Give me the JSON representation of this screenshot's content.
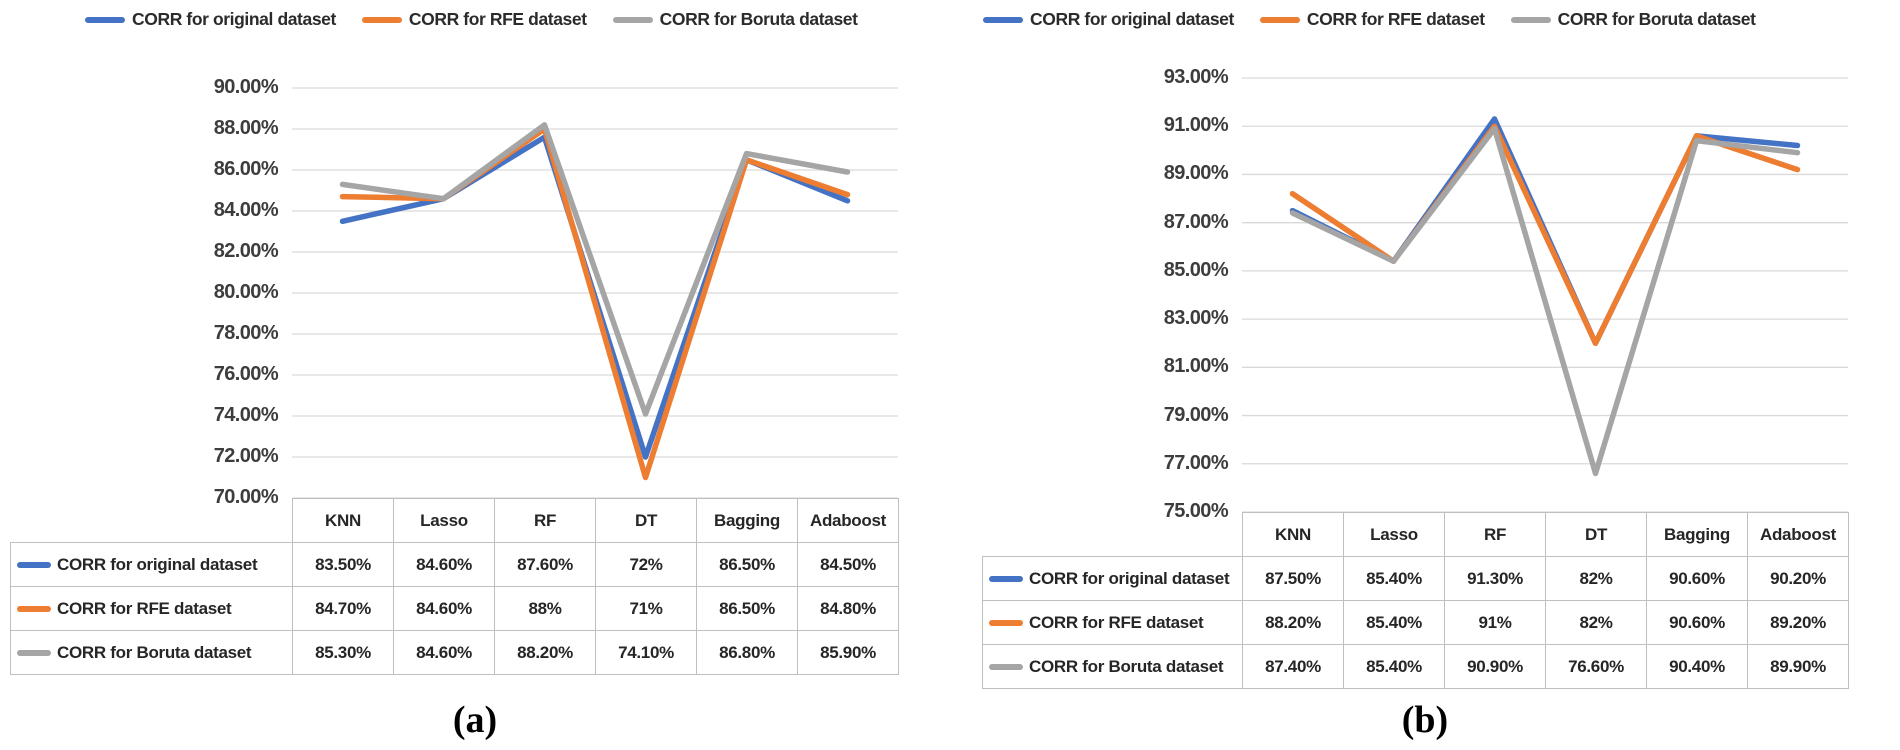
{
  "chart_data": [
    {
      "id": "a",
      "caption": "(a)",
      "type": "line",
      "categories": [
        "KNN",
        "Lasso",
        "RF",
        "DT",
        "Bagging",
        "Adaboost"
      ],
      "series": [
        {
          "name": "CORR for original dataset",
          "color": "#4472C4",
          "values": [
            83.5,
            84.6,
            87.6,
            72,
            86.5,
            84.5
          ],
          "display": [
            "83.50%",
            "84.60%",
            "87.60%",
            "72%",
            "86.50%",
            "84.50%"
          ]
        },
        {
          "name": "CORR for RFE dataset",
          "color": "#ED7D31",
          "values": [
            84.7,
            84.6,
            88,
            71,
            86.5,
            84.8
          ],
          "display": [
            "84.70%",
            "84.60%",
            "88%",
            "71%",
            "86.50%",
            "84.80%"
          ]
        },
        {
          "name": "CORR for Boruta dataset",
          "color": "#A5A5A5",
          "values": [
            85.3,
            84.6,
            88.2,
            74.1,
            86.8,
            85.9
          ],
          "display": [
            "85.30%",
            "84.60%",
            "88.20%",
            "74.10%",
            "86.80%",
            "85.90%"
          ]
        }
      ],
      "ylim": [
        70,
        90
      ],
      "ytick_step": 2,
      "ytick_labels": [
        "90.00%",
        "88.00%",
        "86.00%",
        "84.00%",
        "82.00%",
        "80.00%",
        "78.00%",
        "76.00%",
        "74.00%",
        "72.00%",
        "70.00%"
      ],
      "grid": true,
      "gridline_color": "#D9D9D9",
      "legend_position": "top",
      "xlabel": "",
      "ylabel": ""
    },
    {
      "id": "b",
      "caption": "(b)",
      "type": "line",
      "categories": [
        "KNN",
        "Lasso",
        "RF",
        "DT",
        "Bagging",
        "Adaboost"
      ],
      "series": [
        {
          "name": "CORR for original dataset",
          "color": "#4472C4",
          "values": [
            87.5,
            85.4,
            91.3,
            82,
            90.6,
            90.2
          ],
          "display": [
            "87.50%",
            "85.40%",
            "91.30%",
            "82%",
            "90.60%",
            "90.20%"
          ]
        },
        {
          "name": "CORR for RFE dataset",
          "color": "#ED7D31",
          "values": [
            88.2,
            85.4,
            91,
            82,
            90.6,
            89.2
          ],
          "display": [
            "88.20%",
            "85.40%",
            "91%",
            "82%",
            "90.60%",
            "89.20%"
          ]
        },
        {
          "name": "CORR for Boruta dataset",
          "color": "#A5A5A5",
          "values": [
            87.4,
            85.4,
            90.9,
            76.6,
            90.4,
            89.9
          ],
          "display": [
            "87.40%",
            "85.40%",
            "90.90%",
            "76.60%",
            "90.40%",
            "89.90%"
          ]
        }
      ],
      "ylim": [
        75,
        93
      ],
      "ytick_step": 2,
      "ytick_labels": [
        "93.00%",
        "91.00%",
        "89.00%",
        "87.00%",
        "85.00%",
        "83.00%",
        "81.00%",
        "79.00%",
        "77.00%",
        "75.00%"
      ],
      "grid": true,
      "gridline_color": "#D9D9D9",
      "legend_position": "top",
      "xlabel": "",
      "ylabel": ""
    }
  ]
}
